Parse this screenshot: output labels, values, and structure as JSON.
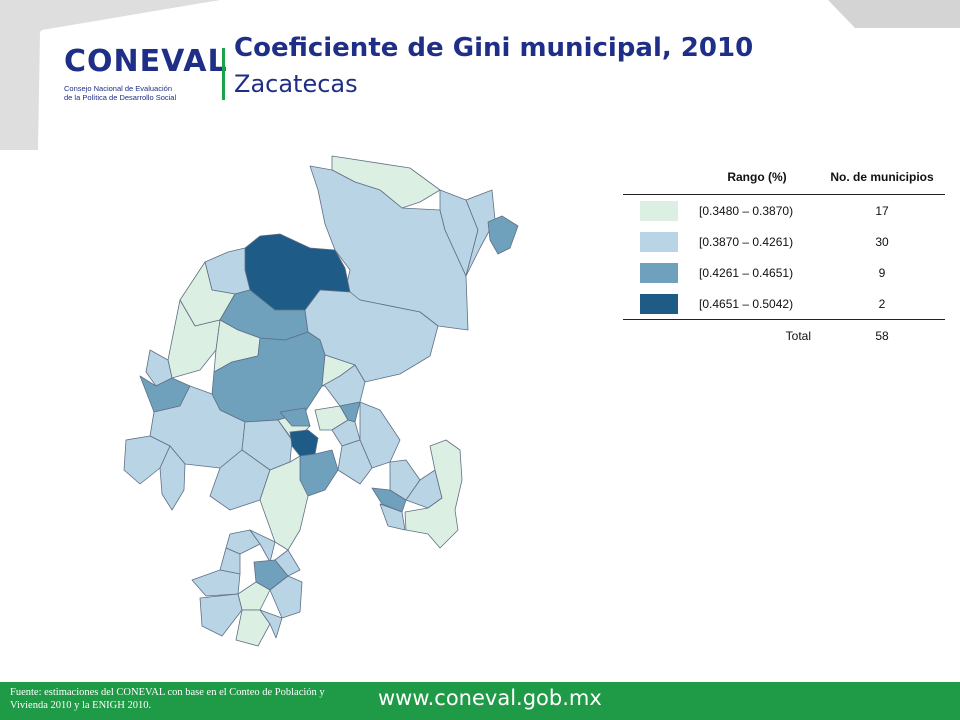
{
  "header": {
    "title": "Coeficiente de Gini municipal, 2010",
    "subtitle": "Zacatecas"
  },
  "logo": {
    "wordmark": "CONEVAL",
    "subtitle_line1": "Consejo Nacional de Evaluación",
    "subtitle_line2": "de la Política de Desarrollo Social"
  },
  "legend": {
    "col_range": "Rango (%)",
    "col_count": "No. de municipios",
    "rows": [
      {
        "range": "[0.3480 – 0.3870)",
        "count": "17",
        "color": "#dcefe3"
      },
      {
        "range": "[0.3870 – 0.4261)",
        "count": "30",
        "color": "#b9d4e4"
      },
      {
        "range": "[0.4261 – 0.4651)",
        "count": "9",
        "color": "#6fa0bc"
      },
      {
        "range": "[0.4651 – 0.5042)",
        "count": "2",
        "color": "#1e5b86"
      }
    ],
    "total_label": "Total",
    "total_count": "58"
  },
  "footer": {
    "source": "Fuente: estimaciones del CONEVAL con base en el Conteo de Población y Vivienda 2010 y la ENIGH 2010.",
    "url": "www.coneval.gob.mx"
  },
  "colors": {
    "navy": "#1f2e86",
    "green": "#1f9a46",
    "c1": "#dcefe3",
    "c2": "#b9d4e4",
    "c3": "#6fa0bc",
    "c4": "#1e5b86"
  }
}
